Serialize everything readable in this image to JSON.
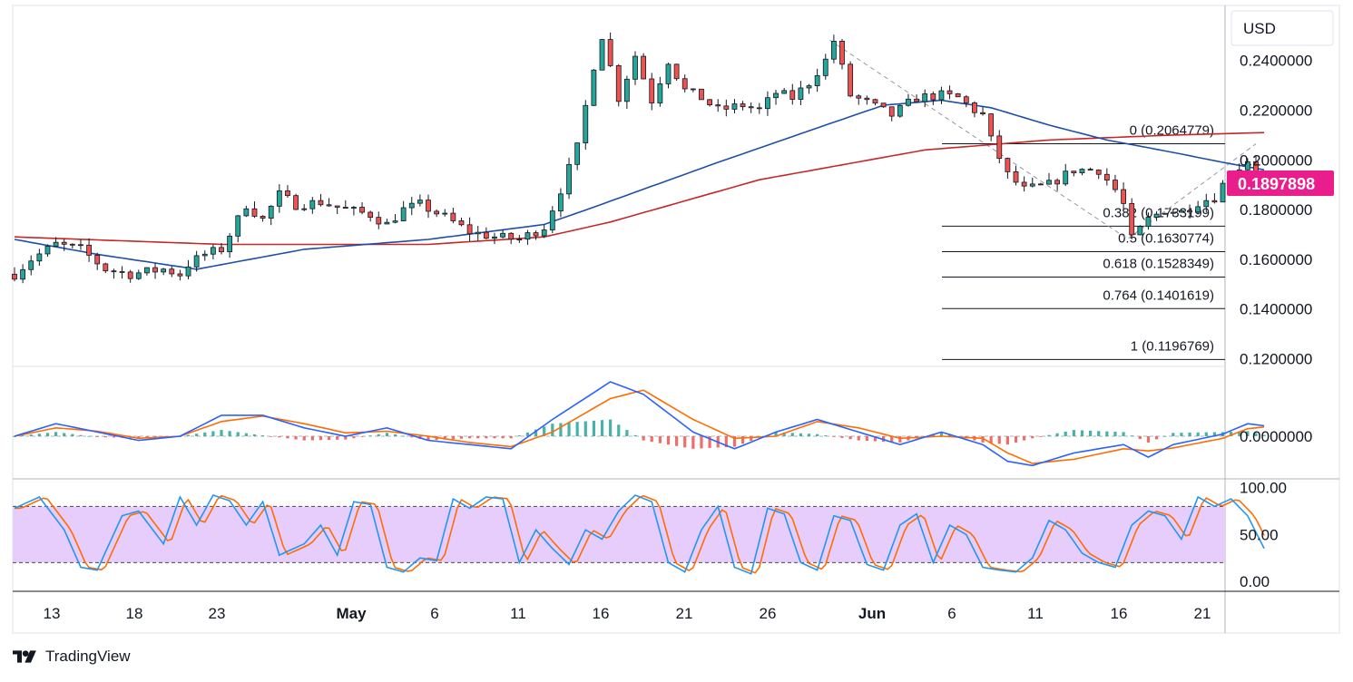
{
  "currency_button": "USD",
  "brand": {
    "name": "TradingView"
  },
  "colors": {
    "candle_up": "#26a69a",
    "candle_down": "#ef5350",
    "candle_body": "#131722",
    "ma_fast": "#1e4fa8",
    "ma_slow": "#c62828",
    "macd": "#2962ff",
    "signal": "#ff6d00",
    "rsi": "#2196f3",
    "rsi_signal": "#ff6d00",
    "rsi_band": "#e7cdfb",
    "price_label_bg": "#e91e8c"
  },
  "chart_data": {
    "type": "candlestick",
    "price_axis": {
      "ticks": [
        "0.2400000",
        "0.2200000",
        "0.2000000",
        "0.1800000",
        "0.1600000",
        "0.1400000",
        "0.1200000"
      ],
      "range": [
        0.112,
        0.26
      ]
    },
    "x_axis": {
      "ticks": [
        "13",
        "18",
        "23",
        "May",
        "6",
        "11",
        "16",
        "21",
        "26",
        "Jun",
        "6",
        "11",
        "16",
        "21"
      ]
    },
    "last_price": "0.1897898",
    "price_path": [
      [
        0,
        0.154
      ],
      [
        2,
        0.16
      ],
      [
        5,
        0.166
      ],
      [
        8,
        0.164
      ],
      [
        11,
        0.156
      ],
      [
        14,
        0.154
      ],
      [
        16,
        0.155
      ],
      [
        18,
        0.156
      ],
      [
        20,
        0.154
      ],
      [
        21,
        0.158
      ],
      [
        23,
        0.162
      ],
      [
        25,
        0.164
      ],
      [
        28,
        0.182
      ],
      [
        30,
        0.176
      ],
      [
        32,
        0.186
      ],
      [
        34,
        0.182
      ],
      [
        37,
        0.183
      ],
      [
        40,
        0.18
      ],
      [
        43,
        0.178
      ],
      [
        45,
        0.174
      ],
      [
        47,
        0.18
      ],
      [
        49,
        0.182
      ],
      [
        52,
        0.177
      ],
      [
        55,
        0.171
      ],
      [
        58,
        0.169
      ],
      [
        61,
        0.168
      ],
      [
        64,
        0.173
      ],
      [
        66,
        0.188
      ],
      [
        68,
        0.205
      ],
      [
        70,
        0.238
      ],
      [
        71,
        0.25
      ],
      [
        73,
        0.225
      ],
      [
        75,
        0.242
      ],
      [
        77,
        0.224
      ],
      [
        79,
        0.24
      ],
      [
        81,
        0.228
      ],
      [
        83,
        0.225
      ],
      [
        85,
        0.22
      ],
      [
        88,
        0.222
      ],
      [
        90,
        0.22
      ],
      [
        92,
        0.227
      ],
      [
        94,
        0.225
      ],
      [
        96,
        0.231
      ],
      [
        98,
        0.24
      ],
      [
        99,
        0.248
      ],
      [
        101,
        0.226
      ],
      [
        103,
        0.223
      ],
      [
        106,
        0.218
      ],
      [
        109,
        0.225
      ],
      [
        112,
        0.226
      ],
      [
        114,
        0.225
      ],
      [
        116,
        0.22
      ],
      [
        117,
        0.218
      ],
      [
        118,
        0.208
      ],
      [
        120,
        0.194
      ],
      [
        122,
        0.188
      ],
      [
        125,
        0.19
      ],
      [
        128,
        0.196
      ],
      [
        131,
        0.196
      ],
      [
        133,
        0.188
      ],
      [
        134,
        0.182
      ],
      [
        135,
        0.168
      ],
      [
        137,
        0.176
      ],
      [
        139,
        0.18
      ],
      [
        141,
        0.179
      ],
      [
        143,
        0.183
      ],
      [
        145,
        0.185
      ],
      [
        146,
        0.19
      ],
      [
        148,
        0.197
      ],
      [
        149,
        0.2
      ],
      [
        151,
        0.1898
      ]
    ],
    "ma_fast": [
      [
        0,
        0.168
      ],
      [
        10,
        0.162
      ],
      [
        22,
        0.156
      ],
      [
        35,
        0.164
      ],
      [
        50,
        0.168
      ],
      [
        64,
        0.174
      ],
      [
        70,
        0.181
      ],
      [
        85,
        0.199
      ],
      [
        98,
        0.214
      ],
      [
        105,
        0.222
      ],
      [
        112,
        0.224
      ],
      [
        118,
        0.221
      ],
      [
        125,
        0.214
      ],
      [
        132,
        0.208
      ],
      [
        140,
        0.203
      ],
      [
        146,
        0.199
      ],
      [
        151,
        0.196
      ]
    ],
    "ma_slow": [
      [
        0,
        0.169
      ],
      [
        25,
        0.166
      ],
      [
        50,
        0.166
      ],
      [
        64,
        0.169
      ],
      [
        72,
        0.175
      ],
      [
        90,
        0.192
      ],
      [
        110,
        0.204
      ],
      [
        125,
        0.208
      ],
      [
        140,
        0.21
      ],
      [
        151,
        0.211
      ]
    ],
    "fibonacci": {
      "swing_high": 0.2482,
      "swing_low": 0.1682,
      "levels": [
        {
          "label": "0 (0.2064779)",
          "value": 0.2064779
        },
        {
          "label": "0.382 (0.1733199)",
          "value": 0.1733199
        },
        {
          "label": "0.5 (0.1630774)",
          "value": 0.1630774
        },
        {
          "label": "0.618 (0.1528349)",
          "value": 0.1528349
        },
        {
          "label": "0.764 (0.1401619)",
          "value": 0.1401619
        },
        {
          "label": "1 (0.1196769)",
          "value": 0.1196769
        }
      ]
    },
    "macd_axis": {
      "ticks": [
        "0.0000000"
      ]
    },
    "macd": [
      [
        0,
        0.0
      ],
      [
        5,
        0.003
      ],
      [
        10,
        0.001
      ],
      [
        15,
        -0.001
      ],
      [
        20,
        0.0
      ],
      [
        25,
        0.005
      ],
      [
        30,
        0.005
      ],
      [
        35,
        0.002
      ],
      [
        40,
        0.0
      ],
      [
        45,
        0.002
      ],
      [
        50,
        -0.001
      ],
      [
        55,
        -0.002
      ],
      [
        60,
        -0.003
      ],
      [
        65,
        0.004
      ],
      [
        72,
        0.013
      ],
      [
        76,
        0.01
      ],
      [
        82,
        0.001
      ],
      [
        87,
        -0.003
      ],
      [
        92,
        0.001
      ],
      [
        97,
        0.004
      ],
      [
        102,
        0.001
      ],
      [
        107,
        -0.002
      ],
      [
        112,
        0.001
      ],
      [
        117,
        -0.002
      ],
      [
        120,
        -0.006
      ],
      [
        123,
        -0.007
      ],
      [
        128,
        -0.004
      ],
      [
        134,
        -0.002
      ],
      [
        137,
        -0.005
      ],
      [
        140,
        -0.002
      ],
      [
        146,
        0.0005
      ],
      [
        149,
        0.003
      ],
      [
        151,
        0.0025
      ]
    ],
    "macd_signal": [
      [
        0,
        0.0
      ],
      [
        5,
        0.002
      ],
      [
        10,
        0.0012
      ],
      [
        15,
        -0.0005
      ],
      [
        20,
        0.0
      ],
      [
        25,
        0.0035
      ],
      [
        30,
        0.0048
      ],
      [
        35,
        0.003
      ],
      [
        40,
        0.0008
      ],
      [
        45,
        0.0012
      ],
      [
        50,
        0.0
      ],
      [
        55,
        -0.0015
      ],
      [
        60,
        -0.0025
      ],
      [
        65,
        0.001
      ],
      [
        72,
        0.009
      ],
      [
        76,
        0.011
      ],
      [
        82,
        0.004
      ],
      [
        87,
        -0.0005
      ],
      [
        92,
        0.0
      ],
      [
        97,
        0.0035
      ],
      [
        102,
        0.002
      ],
      [
        107,
        -0.0005
      ],
      [
        112,
        0.0
      ],
      [
        117,
        -0.0005
      ],
      [
        120,
        -0.004
      ],
      [
        123,
        -0.0065
      ],
      [
        128,
        -0.0055
      ],
      [
        134,
        -0.003
      ],
      [
        137,
        -0.0035
      ],
      [
        140,
        -0.0028
      ],
      [
        146,
        -0.0005
      ],
      [
        149,
        0.0018
      ],
      [
        151,
        0.0022
      ]
    ],
    "macd_range": [
      -0.008,
      0.014
    ],
    "rsi_axis": {
      "ticks": [
        "100.00",
        "50.00",
        "0.00"
      ],
      "overbought": 80,
      "oversold": 20
    },
    "rsi": [
      [
        0,
        78
      ],
      [
        3,
        90
      ],
      [
        6,
        55
      ],
      [
        8,
        15
      ],
      [
        10,
        12
      ],
      [
        13,
        70
      ],
      [
        15,
        75
      ],
      [
        18,
        40
      ],
      [
        20,
        90
      ],
      [
        22,
        60
      ],
      [
        24,
        92
      ],
      [
        26,
        86
      ],
      [
        28,
        60
      ],
      [
        30,
        85
      ],
      [
        32,
        28
      ],
      [
        35,
        40
      ],
      [
        37,
        60
      ],
      [
        39,
        28
      ],
      [
        41,
        85
      ],
      [
        43,
        82
      ],
      [
        45,
        15
      ],
      [
        47,
        10
      ],
      [
        49,
        25
      ],
      [
        51,
        22
      ],
      [
        53,
        88
      ],
      [
        55,
        78
      ],
      [
        57,
        90
      ],
      [
        59,
        88
      ],
      [
        61,
        20
      ],
      [
        63,
        55
      ],
      [
        65,
        35
      ],
      [
        67,
        18
      ],
      [
        69,
        55
      ],
      [
        71,
        45
      ],
      [
        73,
        75
      ],
      [
        75,
        92
      ],
      [
        77,
        85
      ],
      [
        79,
        20
      ],
      [
        81,
        10
      ],
      [
        83,
        55
      ],
      [
        85,
        80
      ],
      [
        87,
        15
      ],
      [
        89,
        8
      ],
      [
        91,
        78
      ],
      [
        93,
        72
      ],
      [
        95,
        20
      ],
      [
        97,
        12
      ],
      [
        99,
        70
      ],
      [
        101,
        65
      ],
      [
        103,
        18
      ],
      [
        105,
        12
      ],
      [
        107,
        60
      ],
      [
        109,
        72
      ],
      [
        111,
        20
      ],
      [
        113,
        60
      ],
      [
        115,
        50
      ],
      [
        117,
        15
      ],
      [
        119,
        12
      ],
      [
        121,
        10
      ],
      [
        123,
        25
      ],
      [
        125,
        65
      ],
      [
        127,
        55
      ],
      [
        129,
        30
      ],
      [
        131,
        20
      ],
      [
        133,
        15
      ],
      [
        135,
        60
      ],
      [
        137,
        75
      ],
      [
        139,
        70
      ],
      [
        141,
        45
      ],
      [
        143,
        90
      ],
      [
        145,
        80
      ],
      [
        147,
        88
      ],
      [
        149,
        70
      ],
      [
        151,
        35
      ]
    ]
  }
}
